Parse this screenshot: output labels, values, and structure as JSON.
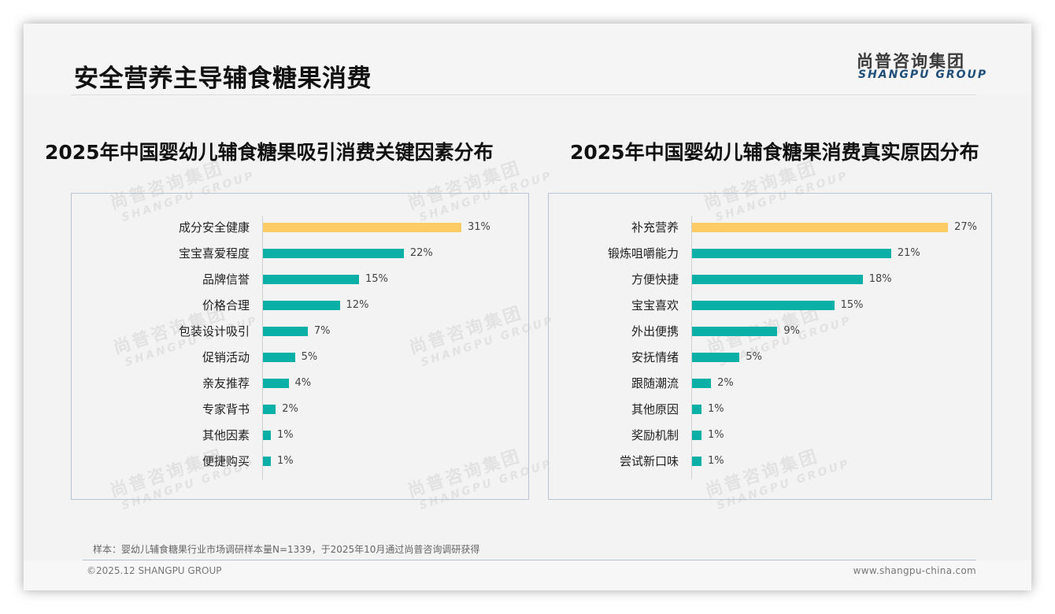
{
  "header": {
    "title": "安全营养主导辅食糖果消费",
    "logo_cn": "尚普咨询集团",
    "logo_en": "SHANGPU GROUP"
  },
  "watermark": {
    "cn": "尚普咨询集团",
    "en": "SHANGPU GROUP"
  },
  "colors": {
    "highlight": "#FFCC66",
    "bar": "#0AAFA6",
    "border": "#B7C4D4",
    "logo_en": "#1F4E79"
  },
  "chart_data": [
    {
      "type": "bar",
      "orientation": "horizontal",
      "title": "2025年中国婴幼儿辅食糖果吸引消费关键因素分布",
      "categories": [
        "成分安全健康",
        "宝宝喜爱程度",
        "品牌信誉",
        "价格合理",
        "包装设计吸引",
        "促销活动",
        "亲友推荐",
        "专家背书",
        "其他因素",
        "便捷购买"
      ],
      "values": [
        31,
        22,
        15,
        12,
        7,
        5,
        4,
        2,
        1,
        1
      ],
      "labels": [
        "31%",
        "22%",
        "15%",
        "12%",
        "7%",
        "5%",
        "4%",
        "2%",
        "1%",
        "1%"
      ],
      "unit": "%",
      "highlight_index": 0,
      "xlabel": "",
      "ylabel": "",
      "grid": false,
      "legend": null
    },
    {
      "type": "bar",
      "orientation": "horizontal",
      "title": "2025年中国婴幼儿辅食糖果消费真实原因分布",
      "categories": [
        "补充营养",
        "锻炼咀嚼能力",
        "方便快捷",
        "宝宝喜欢",
        "外出便携",
        "安抚情绪",
        "跟随潮流",
        "其他原因",
        "奖励机制",
        "尝试新口味"
      ],
      "values": [
        27,
        21,
        18,
        15,
        9,
        5,
        2,
        1,
        1,
        1
      ],
      "labels": [
        "27%",
        "21%",
        "18%",
        "15%",
        "9%",
        "5%",
        "2%",
        "1%",
        "1%",
        "1%"
      ],
      "unit": "%",
      "highlight_index": 0,
      "xlabel": "",
      "ylabel": "",
      "grid": false,
      "legend": null
    }
  ],
  "footer": {
    "note": "样本：婴幼儿辅食糖果行业市场调研样本量N=1339，于2025年10月通过尚普咨询调研获得",
    "copyright": "©2025.12 SHANGPU GROUP",
    "website": "www.shangpu-china.com"
  }
}
